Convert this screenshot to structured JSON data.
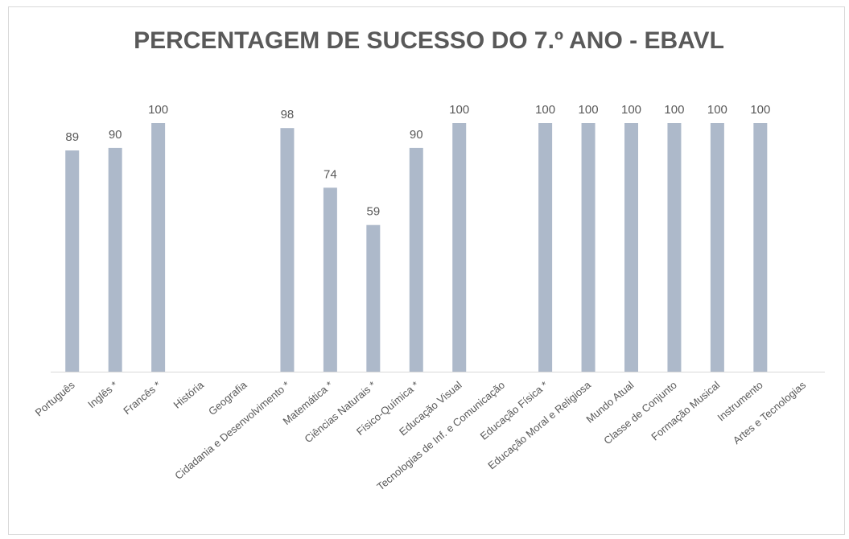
{
  "chart_data": {
    "type": "bar",
    "title": "PERCENTAGEM DE SUCESSO DO 7.º ANO - EBAVL",
    "categories": [
      "Português",
      "Inglês *",
      "Francês *",
      "História",
      "Geografia",
      "Cidadania e Desenvolvimento *",
      "Matemática *",
      "Ciências Naturais *",
      "Físico-Química *",
      "Educação Visual",
      "Tecnologias de Inf. e Comunicação",
      "Educação Física *",
      "Educação Moral e Religiosa",
      "Mundo Atual",
      "Classe de Conjunto",
      "Formação Musical",
      "Instrumento",
      "Artes e Tecnologias"
    ],
    "values": [
      89,
      90,
      100,
      null,
      null,
      98,
      74,
      59,
      90,
      100,
      null,
      100,
      100,
      100,
      100,
      100,
      100,
      null
    ],
    "color": "#adb9ca",
    "ylim": [
      0,
      100
    ]
  }
}
